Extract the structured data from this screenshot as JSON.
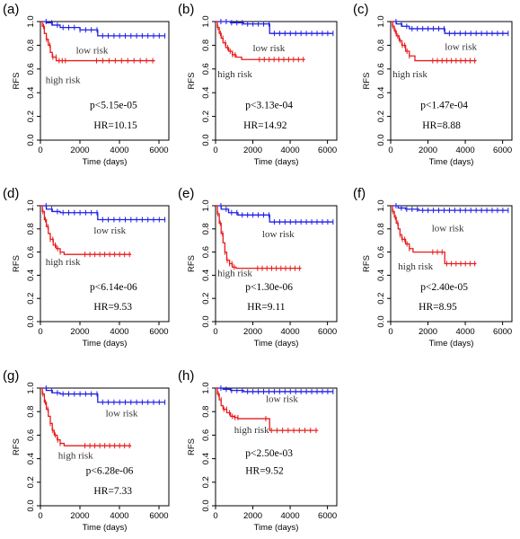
{
  "colors": {
    "low_risk": "#1f1fe6",
    "high_risk": "#e81c1c",
    "axis": "#000000"
  },
  "chart_data": [
    {
      "panel": "(a)",
      "type": "line",
      "xlabel": "Time (days)",
      "ylabel": "RFS",
      "xlim": [
        0,
        6500
      ],
      "ylim": [
        0,
        1
      ],
      "xticks": [
        "0",
        "2000",
        "4000",
        "6000"
      ],
      "yticks": [
        "0.0",
        "0.2",
        "0.4",
        "0.6",
        "0.8",
        "1.0"
      ],
      "p_text": "p<5.15e-05",
      "hr_text": "HR=10.15",
      "series": [
        {
          "name": "low risk",
          "steps": [
            [
              0,
              1.0
            ],
            [
              300,
              0.99
            ],
            [
              600,
              0.97
            ],
            [
              1000,
              0.95
            ],
            [
              2000,
              0.93
            ],
            [
              2900,
              0.88
            ],
            [
              6300,
              0.88
            ]
          ]
        },
        {
          "name": "high risk",
          "steps": [
            [
              0,
              1.0
            ],
            [
              100,
              0.96
            ],
            [
              200,
              0.9
            ],
            [
              300,
              0.85
            ],
            [
              400,
              0.8
            ],
            [
              500,
              0.74
            ],
            [
              600,
              0.7
            ],
            [
              800,
              0.67
            ],
            [
              5800,
              0.67
            ]
          ]
        }
      ]
    },
    {
      "panel": "(b)",
      "type": "line",
      "xlabel": "Time (days)",
      "ylabel": "RFS",
      "xlim": [
        0,
        6500
      ],
      "ylim": [
        0,
        1
      ],
      "xticks": [
        "0",
        "2000",
        "4000",
        "6000"
      ],
      "yticks": [
        "0.0",
        "0.2",
        "0.4",
        "0.6",
        "0.8",
        "1.0"
      ],
      "p_text": "p<3.13e-04",
      "hr_text": "HR=14.92",
      "series": [
        {
          "name": "low risk",
          "steps": [
            [
              0,
              1.0
            ],
            [
              800,
              0.99
            ],
            [
              1500,
              0.98
            ],
            [
              2900,
              0.9
            ],
            [
              6300,
              0.9
            ]
          ]
        },
        {
          "name": "high risk",
          "steps": [
            [
              0,
              1.0
            ],
            [
              100,
              0.95
            ],
            [
              200,
              0.9
            ],
            [
              300,
              0.86
            ],
            [
              400,
              0.82
            ],
            [
              550,
              0.78
            ],
            [
              700,
              0.75
            ],
            [
              900,
              0.72
            ],
            [
              1100,
              0.7
            ],
            [
              1400,
              0.68
            ],
            [
              4800,
              0.68
            ]
          ]
        }
      ]
    },
    {
      "panel": "(c)",
      "type": "line",
      "xlabel": "Time (days)",
      "ylabel": "RFS",
      "xlim": [
        0,
        6500
      ],
      "ylim": [
        0,
        1
      ],
      "xticks": [
        "0",
        "2000",
        "4000",
        "6000"
      ],
      "yticks": [
        "0.0",
        "0.2",
        "0.4",
        "0.6",
        "0.8",
        "1.0"
      ],
      "p_text": "p<1.47e-04",
      "hr_text": "HR=8.88",
      "series": [
        {
          "name": "low risk",
          "steps": [
            [
              0,
              1.0
            ],
            [
              300,
              0.98
            ],
            [
              600,
              0.96
            ],
            [
              1000,
              0.94
            ],
            [
              2900,
              0.9
            ],
            [
              6300,
              0.9
            ]
          ]
        },
        {
          "name": "high risk",
          "steps": [
            [
              0,
              1.0
            ],
            [
              100,
              0.96
            ],
            [
              200,
              0.92
            ],
            [
              300,
              0.88
            ],
            [
              450,
              0.84
            ],
            [
              600,
              0.8
            ],
            [
              800,
              0.75
            ],
            [
              1000,
              0.71
            ],
            [
              1300,
              0.67
            ],
            [
              4600,
              0.67
            ]
          ]
        }
      ]
    },
    {
      "panel": "(d)",
      "type": "line",
      "xlabel": "Time (days)",
      "ylabel": "RFS",
      "xlim": [
        0,
        6500
      ],
      "ylim": [
        0,
        1
      ],
      "xticks": [
        "0",
        "2000",
        "4000",
        "6000"
      ],
      "yticks": [
        "0.0",
        "0.2",
        "0.4",
        "0.6",
        "0.8",
        "1.0"
      ],
      "p_text": "p<6.14e-06",
      "hr_text": "HR=9.53",
      "series": [
        {
          "name": "low risk",
          "steps": [
            [
              0,
              1.0
            ],
            [
              300,
              0.97
            ],
            [
              600,
              0.95
            ],
            [
              1000,
              0.94
            ],
            [
              2900,
              0.88
            ],
            [
              6300,
              0.88
            ]
          ]
        },
        {
          "name": "high risk",
          "steps": [
            [
              0,
              1.0
            ],
            [
              100,
              0.95
            ],
            [
              200,
              0.88
            ],
            [
              300,
              0.82
            ],
            [
              400,
              0.76
            ],
            [
              500,
              0.71
            ],
            [
              650,
              0.66
            ],
            [
              800,
              0.63
            ],
            [
              1000,
              0.6
            ],
            [
              1200,
              0.58
            ],
            [
              4600,
              0.58
            ]
          ]
        }
      ]
    },
    {
      "panel": "(e)",
      "type": "line",
      "xlabel": "Time (days)",
      "ylabel": "RFS",
      "xlim": [
        0,
        6500
      ],
      "ylim": [
        0,
        1
      ],
      "xticks": [
        "0",
        "2000",
        "4000",
        "6000"
      ],
      "yticks": [
        "0.0",
        "0.2",
        "0.4",
        "0.6",
        "0.8",
        "1.0"
      ],
      "p_text": "p<1.30e-06",
      "hr_text": "HR=9.11",
      "series": [
        {
          "name": "low risk",
          "steps": [
            [
              0,
              1.0
            ],
            [
              300,
              0.97
            ],
            [
              700,
              0.94
            ],
            [
              1200,
              0.92
            ],
            [
              2900,
              0.86
            ],
            [
              6300,
              0.86
            ]
          ]
        },
        {
          "name": "high risk",
          "steps": [
            [
              0,
              1.0
            ],
            [
              100,
              0.93
            ],
            [
              200,
              0.85
            ],
            [
              300,
              0.76
            ],
            [
              400,
              0.68
            ],
            [
              500,
              0.6
            ],
            [
              600,
              0.53
            ],
            [
              750,
              0.5
            ],
            [
              900,
              0.47
            ],
            [
              1100,
              0.46
            ],
            [
              4600,
              0.46
            ]
          ]
        }
      ]
    },
    {
      "panel": "(f)",
      "type": "line",
      "xlabel": "Time (days)",
      "ylabel": "RFS",
      "xlim": [
        0,
        6500
      ],
      "ylim": [
        0,
        1
      ],
      "xticks": [
        "0",
        "2000",
        "4000",
        "6000"
      ],
      "yticks": [
        "0.0",
        "0.2",
        "0.4",
        "0.6",
        "0.8",
        "1.0"
      ],
      "p_text": "p<2.40e-05",
      "hr_text": "HR=8.95",
      "series": [
        {
          "name": "low risk",
          "steps": [
            [
              0,
              1.0
            ],
            [
              400,
              0.98
            ],
            [
              800,
              0.97
            ],
            [
              1500,
              0.96
            ],
            [
              6300,
              0.96
            ]
          ]
        },
        {
          "name": "high risk",
          "steps": [
            [
              0,
              1.0
            ],
            [
              100,
              0.95
            ],
            [
              200,
              0.9
            ],
            [
              300,
              0.85
            ],
            [
              400,
              0.8
            ],
            [
              500,
              0.75
            ],
            [
              600,
              0.71
            ],
            [
              800,
              0.67
            ],
            [
              1000,
              0.63
            ],
            [
              1200,
              0.6
            ],
            [
              2900,
              0.5
            ],
            [
              4600,
              0.5
            ]
          ]
        }
      ]
    },
    {
      "panel": "(g)",
      "type": "line",
      "xlabel": "Time (days)",
      "ylabel": "RFS",
      "xlim": [
        0,
        6500
      ],
      "ylim": [
        0,
        1
      ],
      "xticks": [
        "0",
        "2000",
        "4000",
        "6000"
      ],
      "yticks": [
        "0.0",
        "0.2",
        "0.4",
        "0.6",
        "0.8",
        "1.0"
      ],
      "p_text": "p<6.28e-06",
      "hr_text": "HR=7.33",
      "series": [
        {
          "name": "low risk",
          "steps": [
            [
              0,
              1.0
            ],
            [
              300,
              0.98
            ],
            [
              600,
              0.96
            ],
            [
              1000,
              0.95
            ],
            [
              2900,
              0.88
            ],
            [
              6300,
              0.88
            ]
          ]
        },
        {
          "name": "high risk",
          "steps": [
            [
              0,
              1.0
            ],
            [
              100,
              0.95
            ],
            [
              200,
              0.88
            ],
            [
              300,
              0.82
            ],
            [
              400,
              0.76
            ],
            [
              500,
              0.7
            ],
            [
              600,
              0.64
            ],
            [
              700,
              0.6
            ],
            [
              850,
              0.56
            ],
            [
              1000,
              0.53
            ],
            [
              1200,
              0.51
            ],
            [
              4600,
              0.51
            ]
          ]
        }
      ]
    },
    {
      "panel": "(h)",
      "type": "line",
      "xlabel": "Time (days)",
      "ylabel": "RFS",
      "xlim": [
        0,
        6500
      ],
      "ylim": [
        0,
        1
      ],
      "xticks": [
        "0",
        "2000",
        "4000",
        "6000"
      ],
      "yticks": [
        "0.0",
        "0.2",
        "0.4",
        "0.6",
        "0.8",
        "1.0"
      ],
      "p_text": "p<2.50e-03",
      "hr_text": "HR=9.52",
      "series": [
        {
          "name": "low risk",
          "steps": [
            [
              0,
              1.0
            ],
            [
              400,
              0.99
            ],
            [
              800,
              0.98
            ],
            [
              1500,
              0.97
            ],
            [
              6300,
              0.97
            ]
          ]
        },
        {
          "name": "high risk",
          "steps": [
            [
              0,
              1.0
            ],
            [
              100,
              0.95
            ],
            [
              200,
              0.9
            ],
            [
              300,
              0.85
            ],
            [
              400,
              0.82
            ],
            [
              600,
              0.79
            ],
            [
              800,
              0.76
            ],
            [
              1000,
              0.75
            ],
            [
              1200,
              0.74
            ],
            [
              2900,
              0.64
            ],
            [
              5500,
              0.64
            ]
          ]
        }
      ]
    }
  ]
}
